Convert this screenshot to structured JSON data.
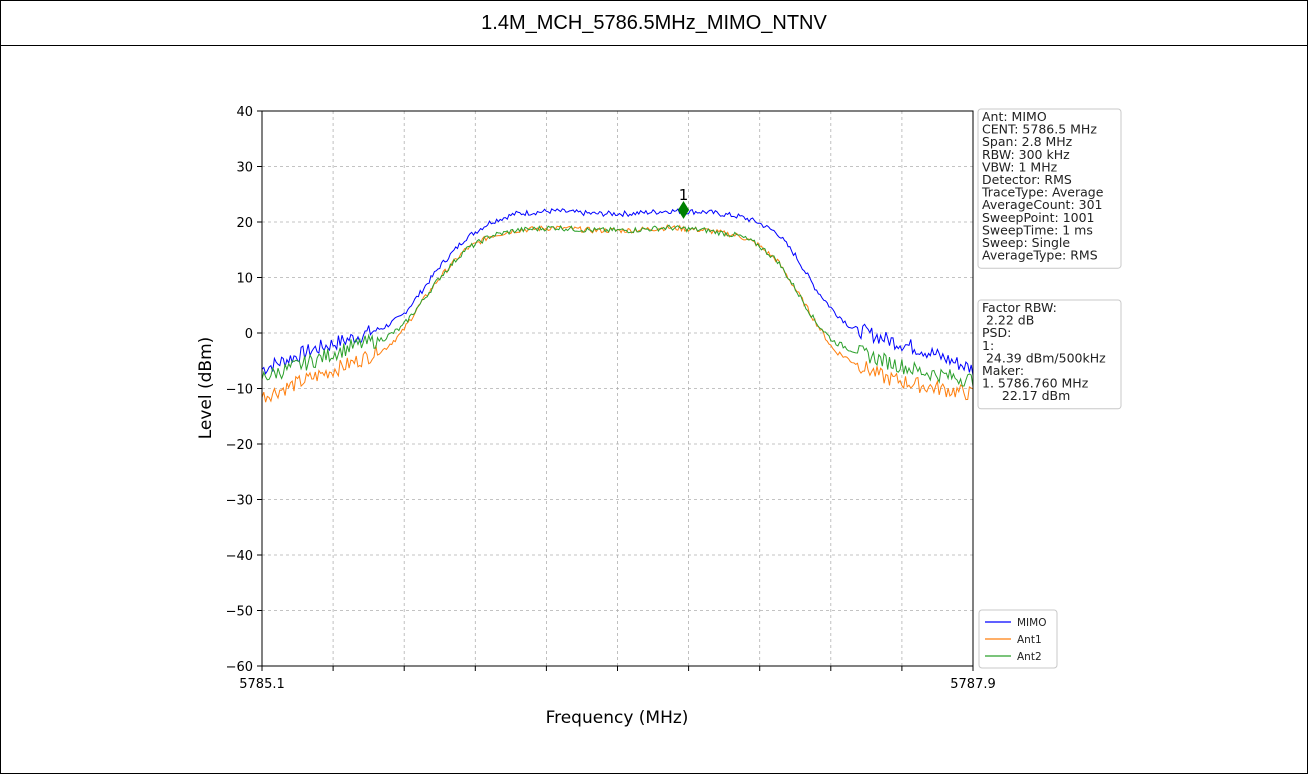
{
  "chart_data": {
    "type": "line",
    "title": "1.4M_MCH_5786.5MHz_MIMO_NTNV",
    "xlabel": "Frequency (MHz)",
    "ylabel": "Level (dBm)",
    "xlim": [
      5785.1,
      5787.9
    ],
    "ylim": [
      -60,
      40
    ],
    "x_ticks": [
      5785.1,
      5787.9
    ],
    "x_tick_labels": [
      "5785.1",
      "5787.9"
    ],
    "y_ticks": [
      -60,
      -50,
      -40,
      -30,
      -20,
      -10,
      0,
      10,
      20,
      30,
      40
    ],
    "y_tick_labels": [
      "−60",
      "−50",
      "−40",
      "−30",
      "−20",
      "−10",
      "0",
      "10",
      "20",
      "30",
      "40"
    ],
    "grid": true,
    "legend_position": "bottom-right",
    "series": [
      {
        "name": "MIMO",
        "color": "#0000ff",
        "x": [
          5785.1,
          5785.3,
          5785.45,
          5785.58,
          5785.65,
          5785.72,
          5785.8,
          5785.9,
          5786.0,
          5786.1,
          5786.25,
          5786.4,
          5786.55,
          5786.7,
          5786.85,
          5786.98,
          5787.05,
          5787.13,
          5787.2,
          5787.28,
          5787.35,
          5787.42,
          5787.55,
          5787.7,
          5787.9
        ],
        "y": [
          -6.5,
          -3,
          -1,
          1,
          3,
          7,
          12,
          17,
          20,
          21.5,
          22,
          21.5,
          21.5,
          22,
          21.8,
          21,
          20,
          18,
          14,
          8,
          4,
          1,
          -1,
          -3,
          -6.5
        ]
      },
      {
        "name": "Ant1",
        "color": "#ff7f0e",
        "x": [
          5785.1,
          5785.3,
          5785.45,
          5785.58,
          5785.65,
          5785.72,
          5785.8,
          5785.9,
          5786.0,
          5786.1,
          5786.25,
          5786.4,
          5786.55,
          5786.7,
          5786.85,
          5786.98,
          5787.05,
          5787.13,
          5787.2,
          5787.28,
          5787.35,
          5787.42,
          5787.55,
          5787.7,
          5787.9
        ],
        "y": [
          -11.5,
          -8,
          -5.5,
          -3,
          0,
          5,
          10,
          15,
          17.5,
          18.5,
          19,
          18.5,
          18.5,
          19,
          18.5,
          17.5,
          16,
          13,
          8,
          2,
          -3,
          -5,
          -8,
          -9.5,
          -11
        ]
      },
      {
        "name": "Ant2",
        "color": "#2ca02c",
        "x": [
          5785.1,
          5785.3,
          5785.45,
          5785.58,
          5785.65,
          5785.72,
          5785.8,
          5785.9,
          5786.0,
          5786.1,
          5786.25,
          5786.4,
          5786.55,
          5786.7,
          5786.85,
          5786.98,
          5787.05,
          5787.13,
          5787.2,
          5787.28,
          5787.35,
          5787.42,
          5787.55,
          5787.7,
          5787.9
        ],
        "y": [
          -8,
          -5,
          -2.5,
          -1,
          1,
          5,
          10,
          15,
          17.5,
          18.5,
          19,
          18.5,
          18.5,
          19,
          18.5,
          17.5,
          16,
          13,
          8,
          2,
          -1.5,
          -3,
          -5,
          -7,
          -8.5
        ]
      }
    ],
    "marker": {
      "label": "1",
      "x": 5786.76,
      "y": 22.17,
      "color": "#008000"
    },
    "info_box": [
      "Ant: MIMO",
      "CENT: 5786.5 MHz",
      "Span: 2.8 MHz",
      "RBW: 300 kHz",
      "VBW: 1 MHz",
      "Detector: RMS",
      "TraceType: Average",
      "AverageCount: 301",
      "SweepPoint: 1001",
      "SweepTime: 1 ms",
      "Sweep: Single",
      "AverageType: RMS"
    ],
    "result_box": [
      "Factor RBW:",
      " 2.22 dB",
      "PSD:",
      "1:",
      " 24.39 dBm/500kHz",
      "Maker:",
      "1. 5786.760 MHz",
      "     22.17 dBm"
    ]
  }
}
